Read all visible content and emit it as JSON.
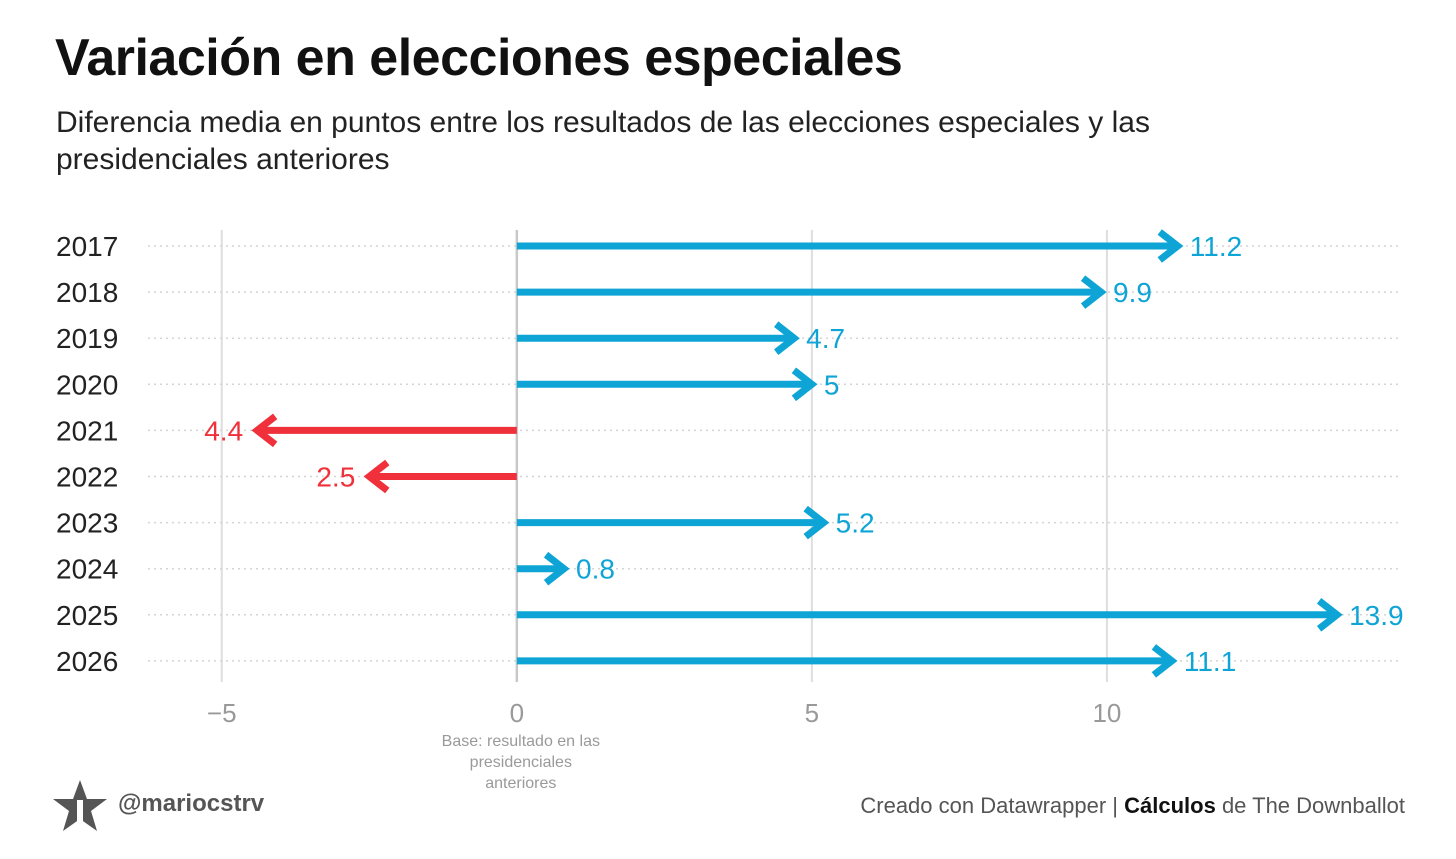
{
  "header": {
    "title": "Variación en elecciones especiales",
    "subtitle": "Diferencia media en puntos entre los resultados de las elecciones especiales y las presidenciales anteriores"
  },
  "chart_data": {
    "type": "arrow-bar",
    "title": "Variación en elecciones especiales",
    "subtitle": "Diferencia media en puntos entre los resultados de las elecciones especiales y las presidenciales anteriores",
    "categories": [
      "2017",
      "2018",
      "2019",
      "2020",
      "2021",
      "2022",
      "2023",
      "2024",
      "2025",
      "2026"
    ],
    "values": [
      11.2,
      9.9,
      4.7,
      5,
      -4.4,
      -2.5,
      5.2,
      0.8,
      13.9,
      11.1
    ],
    "data_labels": [
      "11.2",
      "9.9",
      "4.7",
      "5",
      "4.4",
      "2.5",
      "5.2",
      "0.8",
      "13.9",
      "11.1"
    ],
    "xlim": [
      -6.25,
      15
    ],
    "x_ticks": [
      -5,
      0,
      5,
      10
    ],
    "x_tick_labels": [
      "−5",
      "0",
      "5",
      "10"
    ],
    "baseline": 0,
    "baseline_annotation": [
      "Base: resultado en las",
      "presidenciales",
      "anteriores"
    ],
    "grid": true,
    "colors": {
      "positive": "#0ea5d6",
      "negative": "#f0303a",
      "grid": "#dedede",
      "baseline": "#c8c8c8",
      "tick": "#999999",
      "category": "#222222"
    }
  },
  "footer": {
    "handle": "@mariocstrv",
    "logo_icon": "star-icon",
    "credit_prefix": "Creado con Datawrapper | ",
    "credit_bold": "Cálculos",
    "credit_suffix": " de The Downballot"
  }
}
